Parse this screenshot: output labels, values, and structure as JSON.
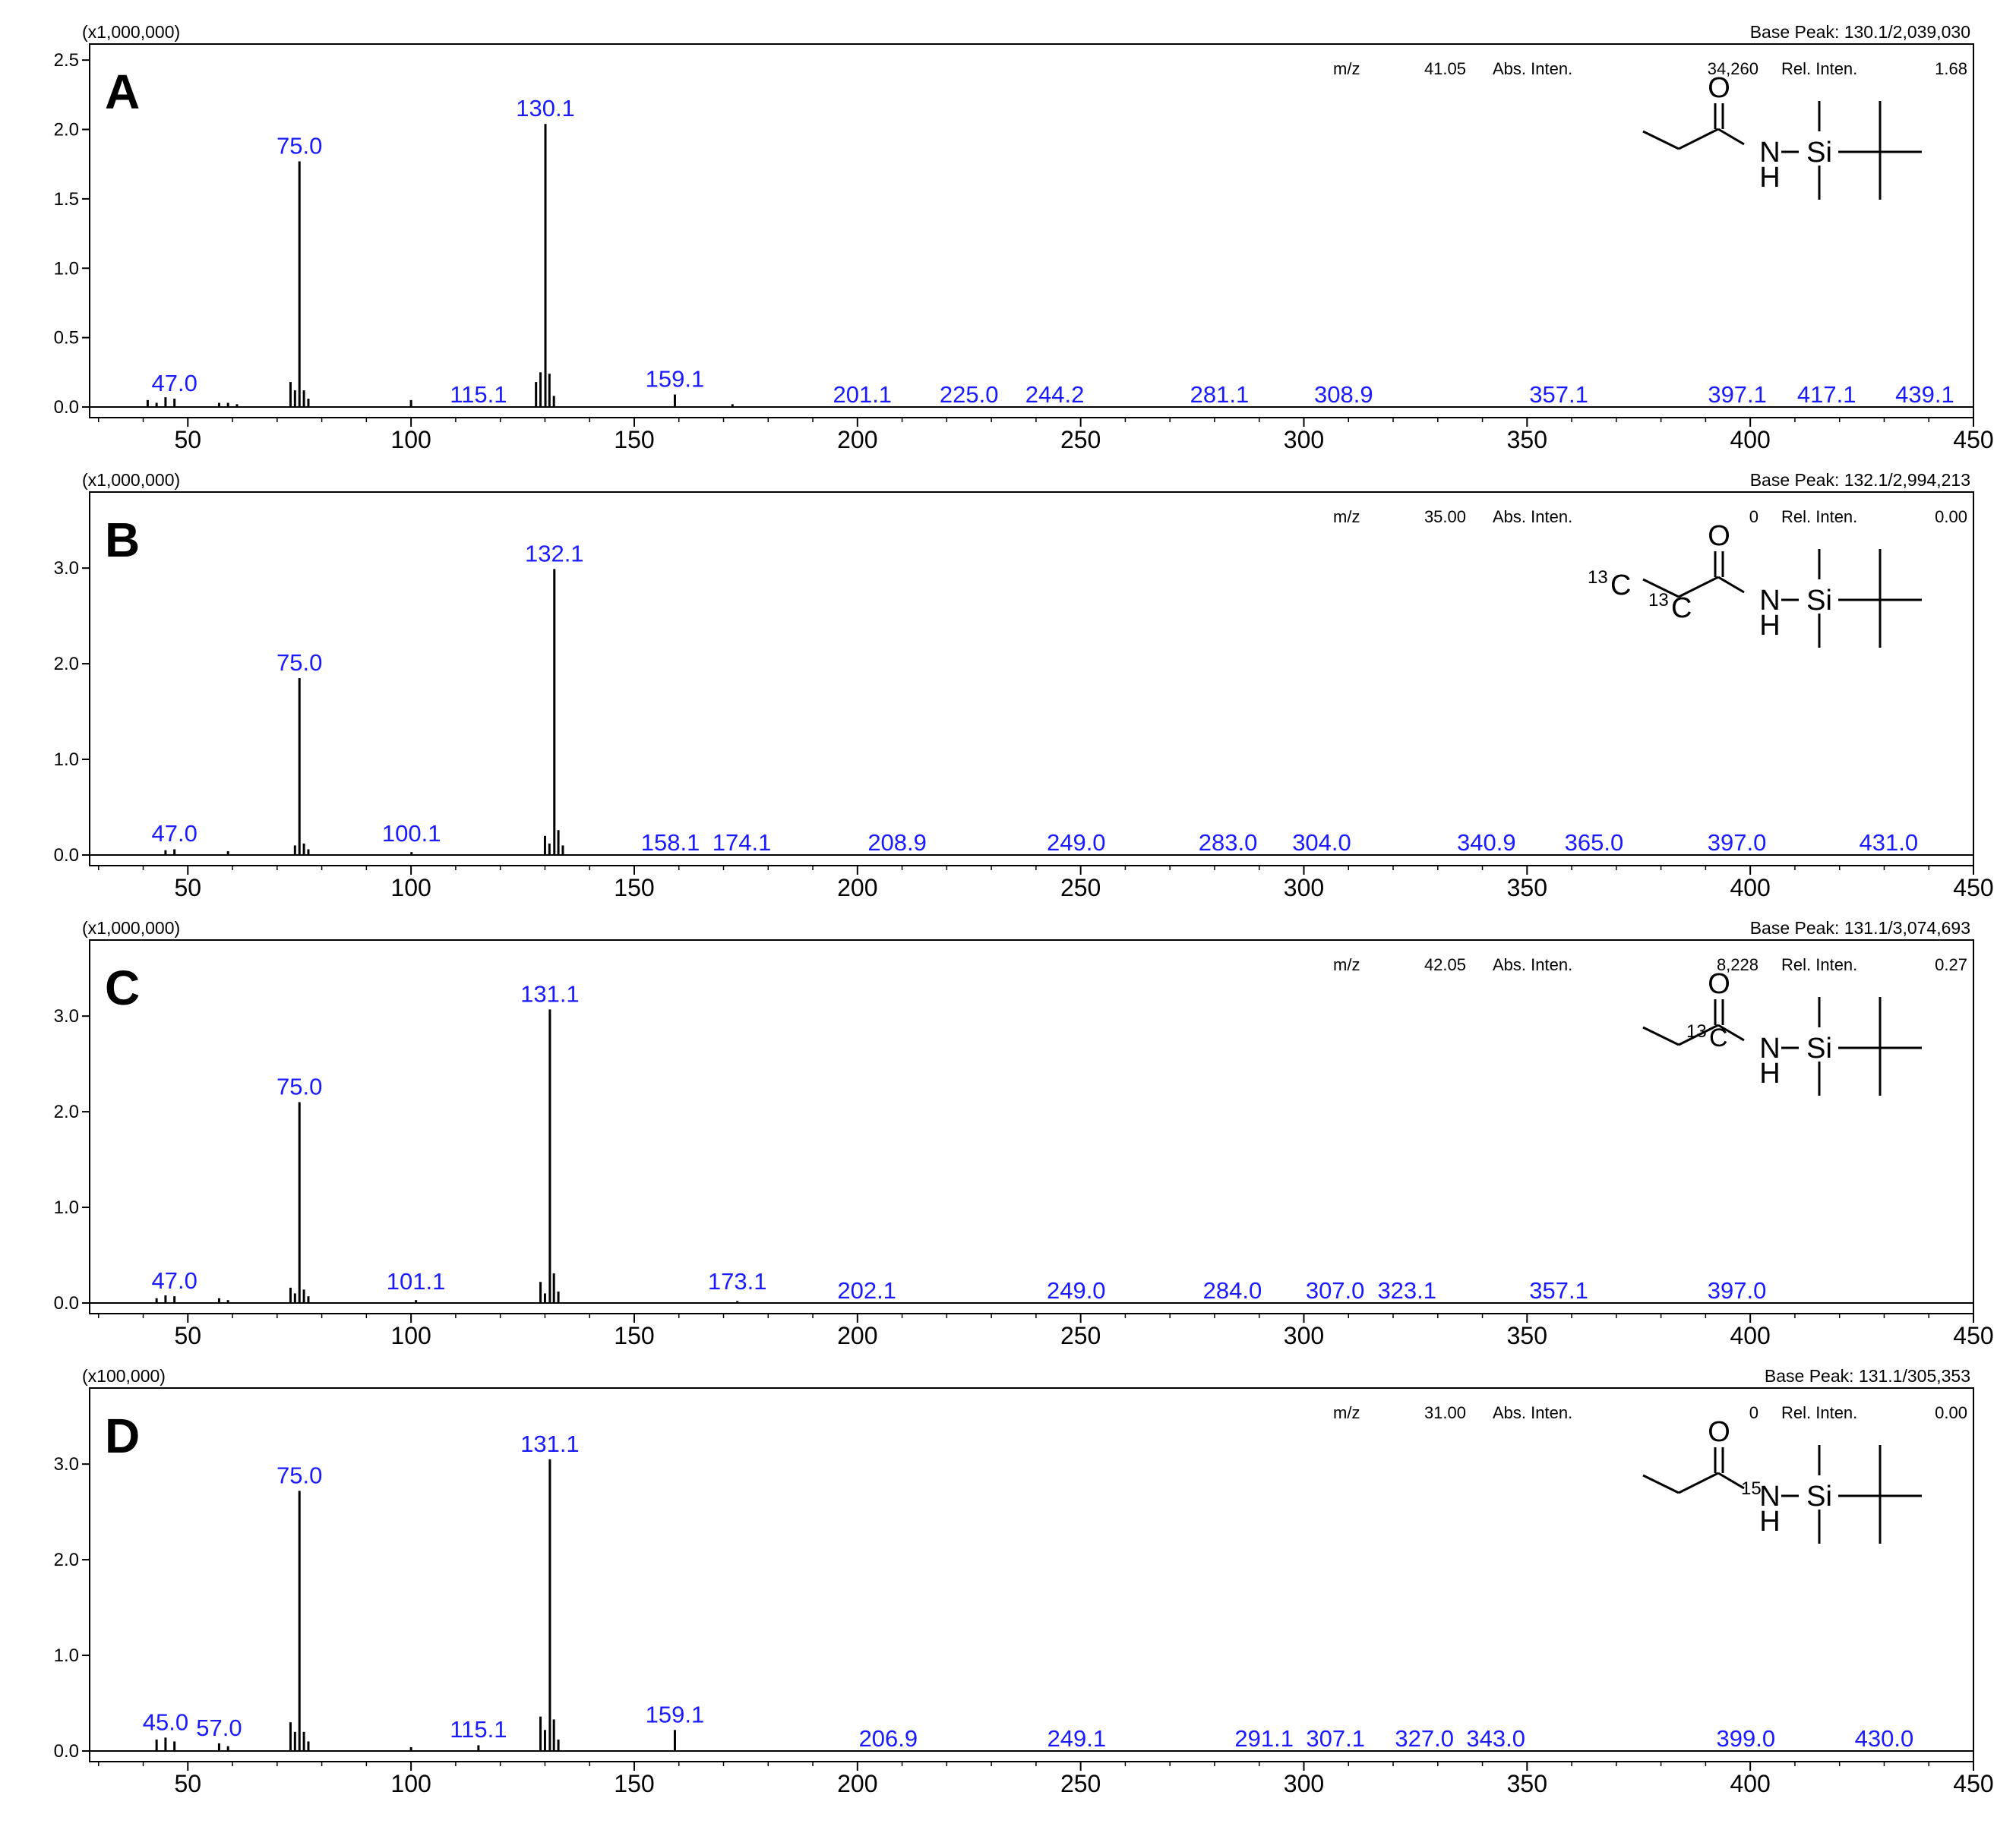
{
  "colors": {
    "axis": "#000000",
    "peak": "#000000",
    "peak_label": "#1a1aff",
    "text": "#000000"
  },
  "chart_data": [
    {
      "type": "bar",
      "panel": "A",
      "scale_label": "(x1,000,000)",
      "base_peak": "Base Peak: 130.1/2,039,030",
      "info": {
        "mz_label": "m/z",
        "mz": "41.05",
        "abs_label": "Abs. Inten.",
        "abs": "34,260",
        "rel_label": "Rel. Inten.",
        "rel": "1.68"
      },
      "xlim": [
        28,
        450
      ],
      "ylim": [
        0,
        2.55
      ],
      "xticks": [
        50,
        100,
        150,
        200,
        250,
        300,
        350,
        400,
        450
      ],
      "xtick_labels": [
        "50",
        "100",
        "150",
        "200",
        "250",
        "300",
        "350",
        "400",
        "450"
      ],
      "yticks": [
        0,
        0.5,
        1.0,
        1.5,
        2.0,
        2.5
      ],
      "ytick_labels": [
        "0.0",
        "0.5",
        "1.0",
        "1.5",
        "2.0",
        "2.5"
      ],
      "peaks": [
        {
          "x": 41.0,
          "y": 0.05
        },
        {
          "x": 43.0,
          "y": 0.03
        },
        {
          "x": 45.0,
          "y": 0.07
        },
        {
          "x": 47.0,
          "y": 0.06
        },
        {
          "x": 57.0,
          "y": 0.03
        },
        {
          "x": 59.0,
          "y": 0.03
        },
        {
          "x": 61.0,
          "y": 0.02
        },
        {
          "x": 73.0,
          "y": 0.18
        },
        {
          "x": 74.0,
          "y": 0.12
        },
        {
          "x": 75.0,
          "y": 1.77
        },
        {
          "x": 76.0,
          "y": 0.12
        },
        {
          "x": 77.0,
          "y": 0.06
        },
        {
          "x": 100.0,
          "y": 0.05
        },
        {
          "x": 128.0,
          "y": 0.18
        },
        {
          "x": 129.0,
          "y": 0.25
        },
        {
          "x": 130.1,
          "y": 2.04
        },
        {
          "x": 131.0,
          "y": 0.24
        },
        {
          "x": 132.0,
          "y": 0.08
        },
        {
          "x": 159.1,
          "y": 0.09
        },
        {
          "x": 172.0,
          "y": 0.02
        }
      ],
      "labels": [
        {
          "x": 47.0,
          "text": "47.0"
        },
        {
          "x": 75.0,
          "text": "75.0"
        },
        {
          "x": 115.1,
          "text": "115.1"
        },
        {
          "x": 130.1,
          "text": "130.1"
        },
        {
          "x": 159.1,
          "text": "159.1"
        },
        {
          "x": 201.1,
          "text": "201.1"
        },
        {
          "x": 225.0,
          "text": "225.0"
        },
        {
          "x": 244.2,
          "text": "244.2"
        },
        {
          "x": 281.1,
          "text": "281.1"
        },
        {
          "x": 308.9,
          "text": "308.9"
        },
        {
          "x": 357.1,
          "text": "357.1"
        },
        {
          "x": 397.1,
          "text": "397.1"
        },
        {
          "x": 417.1,
          "text": "417.1"
        },
        {
          "x": 439.1,
          "text": "439.1"
        }
      ],
      "structure": {
        "c1": "",
        "c2": "",
        "o": "O",
        "n": "N",
        "n_iso": "",
        "h": "H",
        "si": "Si"
      }
    },
    {
      "type": "bar",
      "panel": "B",
      "scale_label": "(x1,000,000)",
      "base_peak": "Base Peak: 132.1/2,994,213",
      "info": {
        "mz_label": "m/z",
        "mz": "35.00",
        "abs_label": "Abs. Inten.",
        "abs": "0",
        "rel_label": "Rel. Inten.",
        "rel": "0.00"
      },
      "xlim": [
        28,
        450
      ],
      "ylim": [
        0,
        3.7
      ],
      "xticks": [
        50,
        100,
        150,
        200,
        250,
        300,
        350,
        400,
        450
      ],
      "xtick_labels": [
        "50",
        "100",
        "150",
        "200",
        "250",
        "300",
        "350",
        "400",
        "450"
      ],
      "yticks": [
        0,
        1.0,
        2.0,
        3.0
      ],
      "ytick_labels": [
        "0.0",
        "1.0",
        "2.0",
        "3.0"
      ],
      "peaks": [
        {
          "x": 45.0,
          "y": 0.05
        },
        {
          "x": 47.0,
          "y": 0.06
        },
        {
          "x": 59.0,
          "y": 0.04
        },
        {
          "x": 74.0,
          "y": 0.1
        },
        {
          "x": 75.0,
          "y": 1.85
        },
        {
          "x": 76.0,
          "y": 0.12
        },
        {
          "x": 77.0,
          "y": 0.06
        },
        {
          "x": 100.1,
          "y": 0.03
        },
        {
          "x": 130.0,
          "y": 0.2
        },
        {
          "x": 131.0,
          "y": 0.12
        },
        {
          "x": 132.1,
          "y": 2.99
        },
        {
          "x": 133.0,
          "y": 0.26
        },
        {
          "x": 134.0,
          "y": 0.1
        }
      ],
      "labels": [
        {
          "x": 47.0,
          "text": "47.0"
        },
        {
          "x": 75.0,
          "text": "75.0"
        },
        {
          "x": 100.1,
          "text": "100.1"
        },
        {
          "x": 132.1,
          "text": "132.1"
        },
        {
          "x": 158.1,
          "text": "158.1"
        },
        {
          "x": 174.1,
          "text": "174.1"
        },
        {
          "x": 208.9,
          "text": "208.9"
        },
        {
          "x": 249.0,
          "text": "249.0"
        },
        {
          "x": 283.0,
          "text": "283.0"
        },
        {
          "x": 304.0,
          "text": "304.0"
        },
        {
          "x": 340.9,
          "text": "340.9"
        },
        {
          "x": 365.0,
          "text": "365.0"
        },
        {
          "x": 397.0,
          "text": "397.0"
        },
        {
          "x": 431.0,
          "text": "431.0"
        }
      ],
      "structure": {
        "c1": "C",
        "c2": "C",
        "iso1": "13",
        "iso2": "13",
        "o": "O",
        "n": "N",
        "n_iso": "",
        "h": "H",
        "si": "Si"
      }
    },
    {
      "type": "bar",
      "panel": "C",
      "scale_label": "(x1,000,000)",
      "base_peak": "Base Peak: 131.1/3,074,693",
      "info": {
        "mz_label": "m/z",
        "mz": "42.05",
        "abs_label": "Abs. Inten.",
        "abs": "8,228",
        "rel_label": "Rel. Inten.",
        "rel": "0.27"
      },
      "xlim": [
        28,
        450
      ],
      "ylim": [
        0,
        3.7
      ],
      "xticks": [
        50,
        100,
        150,
        200,
        250,
        300,
        350,
        400,
        450
      ],
      "xtick_labels": [
        "50",
        "100",
        "150",
        "200",
        "250",
        "300",
        "350",
        "400",
        "450"
      ],
      "yticks": [
        0,
        1.0,
        2.0,
        3.0
      ],
      "ytick_labels": [
        "0.0",
        "1.0",
        "2.0",
        "3.0"
      ],
      "peaks": [
        {
          "x": 43.0,
          "y": 0.05
        },
        {
          "x": 45.0,
          "y": 0.08
        },
        {
          "x": 47.0,
          "y": 0.07
        },
        {
          "x": 57.0,
          "y": 0.05
        },
        {
          "x": 59.0,
          "y": 0.03
        },
        {
          "x": 73.0,
          "y": 0.16
        },
        {
          "x": 74.0,
          "y": 0.1
        },
        {
          "x": 75.0,
          "y": 2.1
        },
        {
          "x": 76.0,
          "y": 0.14
        },
        {
          "x": 77.0,
          "y": 0.07
        },
        {
          "x": 101.1,
          "y": 0.03
        },
        {
          "x": 129.0,
          "y": 0.22
        },
        {
          "x": 130.0,
          "y": 0.1
        },
        {
          "x": 131.1,
          "y": 3.07
        },
        {
          "x": 132.0,
          "y": 0.31
        },
        {
          "x": 133.0,
          "y": 0.12
        },
        {
          "x": 173.1,
          "y": 0.02
        }
      ],
      "labels": [
        {
          "x": 47.0,
          "text": "47.0"
        },
        {
          "x": 75.0,
          "text": "75.0"
        },
        {
          "x": 101.1,
          "text": "101.1"
        },
        {
          "x": 131.1,
          "text": "131.1"
        },
        {
          "x": 173.1,
          "text": "173.1"
        },
        {
          "x": 202.1,
          "text": "202.1"
        },
        {
          "x": 249.0,
          "text": "249.0"
        },
        {
          "x": 284.0,
          "text": "284.0"
        },
        {
          "x": 307.0,
          "text": "307.0"
        },
        {
          "x": 323.1,
          "text": "323.1"
        },
        {
          "x": 357.1,
          "text": "357.1"
        },
        {
          "x": 397.0,
          "text": "397.0"
        }
      ],
      "structure": {
        "c1": "",
        "c2": "C",
        "iso2": "13",
        "o": "O",
        "n": "N",
        "n_iso": "",
        "h": "H",
        "si": "Si"
      }
    },
    {
      "type": "bar",
      "panel": "D",
      "scale_label": "(x100,000)",
      "base_peak": "Base Peak: 131.1/305,353",
      "info": {
        "mz_label": "m/z",
        "mz": "31.00",
        "abs_label": "Abs. Inten.",
        "abs": "0",
        "rel_label": "Rel. Inten.",
        "rel": "0.00"
      },
      "xlim": [
        28,
        450
      ],
      "ylim": [
        0,
        3.7
      ],
      "xticks": [
        50,
        100,
        150,
        200,
        250,
        300,
        350,
        400,
        450
      ],
      "xtick_labels": [
        "50",
        "100",
        "150",
        "200",
        "250",
        "300",
        "350",
        "400",
        "450"
      ],
      "yticks": [
        0,
        1.0,
        2.0,
        3.0
      ],
      "ytick_labels": [
        "0.0",
        "1.0",
        "2.0",
        "3.0"
      ],
      "peaks": [
        {
          "x": 43.0,
          "y": 0.12
        },
        {
          "x": 45.0,
          "y": 0.14
        },
        {
          "x": 47.0,
          "y": 0.1
        },
        {
          "x": 57.0,
          "y": 0.08
        },
        {
          "x": 59.0,
          "y": 0.05
        },
        {
          "x": 73.0,
          "y": 0.3
        },
        {
          "x": 74.0,
          "y": 0.2
        },
        {
          "x": 75.0,
          "y": 2.72
        },
        {
          "x": 76.0,
          "y": 0.2
        },
        {
          "x": 77.0,
          "y": 0.1
        },
        {
          "x": 100.0,
          "y": 0.04
        },
        {
          "x": 115.1,
          "y": 0.06
        },
        {
          "x": 129.0,
          "y": 0.36
        },
        {
          "x": 130.0,
          "y": 0.22
        },
        {
          "x": 131.1,
          "y": 3.05
        },
        {
          "x": 132.0,
          "y": 0.33
        },
        {
          "x": 133.0,
          "y": 0.12
        },
        {
          "x": 159.1,
          "y": 0.22
        }
      ],
      "labels": [
        {
          "x": 45.0,
          "text": "45.0"
        },
        {
          "x": 57.0,
          "text": "57.0"
        },
        {
          "x": 75.0,
          "text": "75.0"
        },
        {
          "x": 115.1,
          "text": "115.1"
        },
        {
          "x": 131.1,
          "text": "131.1"
        },
        {
          "x": 159.1,
          "text": "159.1"
        },
        {
          "x": 206.9,
          "text": "206.9"
        },
        {
          "x": 249.1,
          "text": "249.1"
        },
        {
          "x": 291.1,
          "text": "291.1"
        },
        {
          "x": 307.1,
          "text": "307.1"
        },
        {
          "x": 327.0,
          "text": "327.0"
        },
        {
          "x": 343.0,
          "text": "343.0"
        },
        {
          "x": 399.0,
          "text": "399.0"
        },
        {
          "x": 430.0,
          "text": "430.0"
        }
      ],
      "structure": {
        "c1": "",
        "c2": "",
        "o": "O",
        "n": "N",
        "n_iso": "15",
        "h": "H",
        "si": "Si"
      }
    }
  ]
}
